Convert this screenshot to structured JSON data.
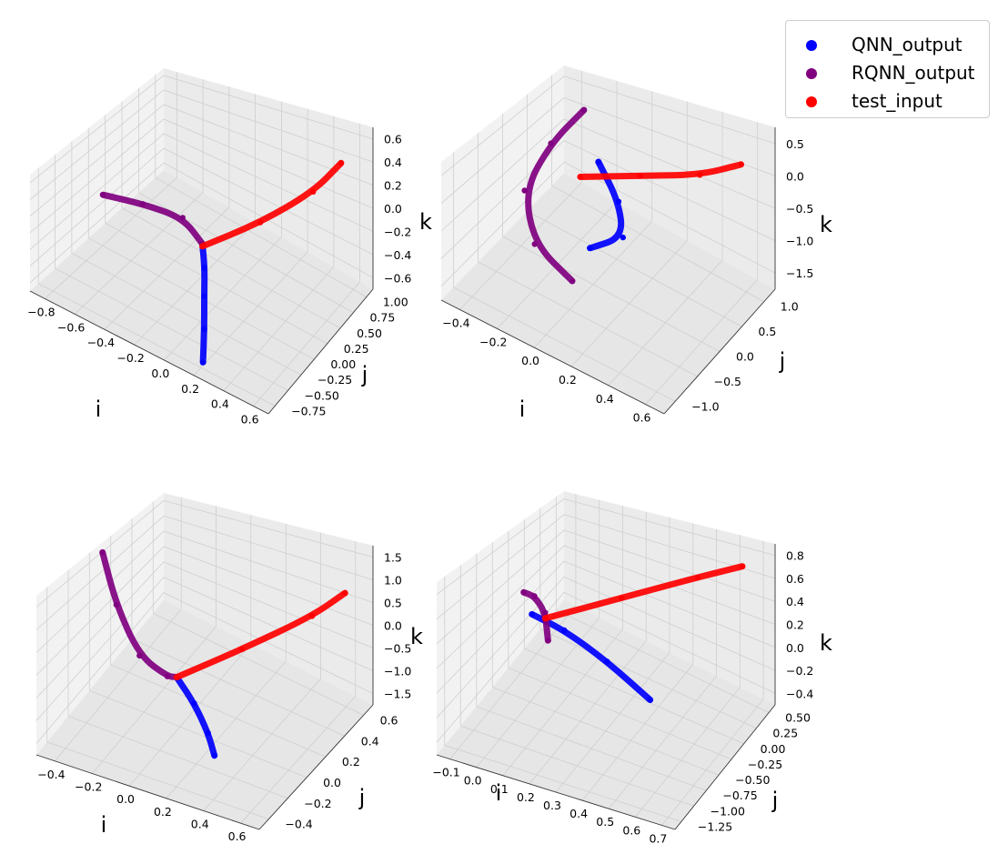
{
  "legend": [
    {
      "label": "QNN_output",
      "color": "#0000ff"
    },
    {
      "label": "RQNN_output",
      "color": "#800080"
    },
    {
      "label": "test_input",
      "color": "#ff0000"
    }
  ],
  "chart_data": [
    {
      "type": "scatter3d",
      "xlabel": "i",
      "ylabel": "j",
      "zlabel": "k",
      "xticks": [
        "−0.8",
        "−0.6",
        "−0.4",
        "−0.2",
        "0.0",
        "0.2",
        "0.4",
        "0.6"
      ],
      "yticks": [
        "−0.75",
        "−0.50",
        "−0.25",
        "0.00",
        "0.25",
        "0.50",
        "0.75",
        "1.00"
      ],
      "zticks": [
        "−0.6",
        "−0.4",
        "−0.2",
        "0.0",
        "0.2",
        "0.4",
        "0.6"
      ],
      "series": [
        {
          "name": "QNN_output",
          "color": "#0000ff",
          "points": [
            [
              -0.05,
              0.0,
              -0.2
            ],
            [
              0.0,
              -0.1,
              -0.32
            ],
            [
              0.05,
              -0.25,
              -0.45
            ],
            [
              0.12,
              -0.45,
              -0.58
            ],
            [
              0.2,
              -0.7,
              -0.68
            ]
          ]
        },
        {
          "name": "RQNN_output",
          "color": "#800080",
          "points": [
            [
              -0.7,
              -0.05,
              -0.18
            ],
            [
              -0.45,
              0.0,
              -0.12
            ],
            [
              -0.2,
              0.05,
              -0.1
            ],
            [
              -0.05,
              0.0,
              -0.2
            ]
          ]
        },
        {
          "name": "test_input",
          "color": "#ff0000",
          "points": [
            [
              -0.05,
              0.0,
              -0.22
            ],
            [
              0.25,
              0.25,
              0.05
            ],
            [
              0.5,
              0.55,
              0.32
            ],
            [
              0.6,
              0.8,
              0.5
            ]
          ]
        }
      ]
    },
    {
      "type": "scatter3d",
      "xlabel": "i",
      "ylabel": "j",
      "zlabel": "k",
      "xticks": [
        "−0.4",
        "−0.2",
        "0.0",
        "0.2",
        "0.4",
        "0.6"
      ],
      "yticks": [
        "−1.0",
        "−0.5",
        "0.0",
        "0.5",
        "1.0"
      ],
      "zticks": [
        "−1.5",
        "−1.0",
        "−0.5",
        "0.0",
        "0.5"
      ],
      "series": [
        {
          "name": "QNN_output",
          "color": "#0000ff",
          "points": [
            [
              0.0,
              0.2,
              0.0
            ],
            [
              0.12,
              0.15,
              -0.4
            ],
            [
              0.18,
              0.0,
              -0.75
            ],
            [
              0.05,
              -0.2,
              -0.95
            ]
          ]
        },
        {
          "name": "RQNN_output",
          "color": "#800080",
          "points": [
            [
              -0.15,
              0.5,
              0.35
            ],
            [
              -0.28,
              0.3,
              -0.2
            ],
            [
              -0.35,
              0.0,
              -0.8
            ],
            [
              -0.2,
              -0.4,
              -1.1
            ],
            [
              0.05,
              -0.6,
              -1.15
            ]
          ]
        },
        {
          "name": "test_input",
          "color": "#ff0000",
          "points": [
            [
              -0.05,
              0.0,
              -0.15
            ],
            [
              0.2,
              0.3,
              0.0
            ],
            [
              0.45,
              0.6,
              0.15
            ],
            [
              0.6,
              0.9,
              0.3
            ]
          ]
        }
      ]
    },
    {
      "type": "scatter3d",
      "xlabel": "i",
      "ylabel": "j",
      "zlabel": "k",
      "xticks": [
        "−0.4",
        "−0.2",
        "0.0",
        "0.2",
        "0.4",
        "0.6"
      ],
      "yticks": [
        "−0.4",
        "−0.2",
        "0.0",
        "0.2",
        "0.4",
        "0.6"
      ],
      "zticks": [
        "−1.5",
        "−1.0",
        "−0.5",
        "0.0",
        "0.5",
        "1.0",
        "1.5"
      ],
      "series": [
        {
          "name": "QNN_output",
          "color": "#0000ff",
          "points": [
            [
              0.0,
              0.0,
              -0.5
            ],
            [
              0.12,
              -0.05,
              -0.8
            ],
            [
              0.22,
              -0.1,
              -1.2
            ],
            [
              0.28,
              -0.15,
              -1.5
            ]
          ]
        },
        {
          "name": "RQNN_output",
          "color": "#800080",
          "points": [
            [
              -0.45,
              0.1,
              1.4
            ],
            [
              -0.35,
              0.05,
              0.5
            ],
            [
              -0.2,
              0.0,
              -0.3
            ],
            [
              -0.05,
              0.0,
              -0.55
            ],
            [
              0.0,
              0.0,
              -0.5
            ]
          ]
        },
        {
          "name": "test_input",
          "color": "#ff0000",
          "points": [
            [
              0.0,
              0.0,
              -0.5
            ],
            [
              0.25,
              0.2,
              0.0
            ],
            [
              0.5,
              0.45,
              0.5
            ],
            [
              0.6,
              0.6,
              0.8
            ]
          ]
        }
      ]
    },
    {
      "type": "scatter3d",
      "xlabel": "i",
      "ylabel": "j",
      "zlabel": "k",
      "xticks": [
        "−0.1",
        "0.0",
        "0.1",
        "0.2",
        "0.3",
        "0.4",
        "0.5",
        "0.6",
        "0.7"
      ],
      "yticks": [
        "−1.25",
        "−1.00",
        "−0.75",
        "−0.50",
        "−0.25",
        "0.00",
        "0.25",
        "0.50"
      ],
      "zticks": [
        "−0.4",
        "−0.2",
        "0.0",
        "0.2",
        "0.4",
        "0.6",
        "0.8"
      ],
      "series": [
        {
          "name": "QNN_output",
          "color": "#0000ff",
          "points": [
            [
              -0.05,
              0.0,
              0.05
            ],
            [
              0.1,
              -0.15,
              0.1
            ],
            [
              0.3,
              -0.35,
              0.08
            ],
            [
              0.5,
              -0.55,
              0.0
            ]
          ]
        },
        {
          "name": "RQNN_output",
          "color": "#800080",
          "points": [
            [
              -0.1,
              0.1,
              0.15
            ],
            [
              -0.05,
              0.05,
              0.18
            ],
            [
              0.0,
              0.0,
              0.1
            ],
            [
              0.02,
              -0.05,
              -0.1
            ]
          ]
        },
        {
          "name": "test_input",
          "color": "#ff0000",
          "points": [
            [
              0.0,
              0.0,
              0.05
            ],
            [
              0.25,
              0.2,
              0.3
            ],
            [
              0.5,
              0.4,
              0.55
            ],
            [
              0.65,
              0.5,
              0.7
            ]
          ]
        }
      ]
    }
  ]
}
